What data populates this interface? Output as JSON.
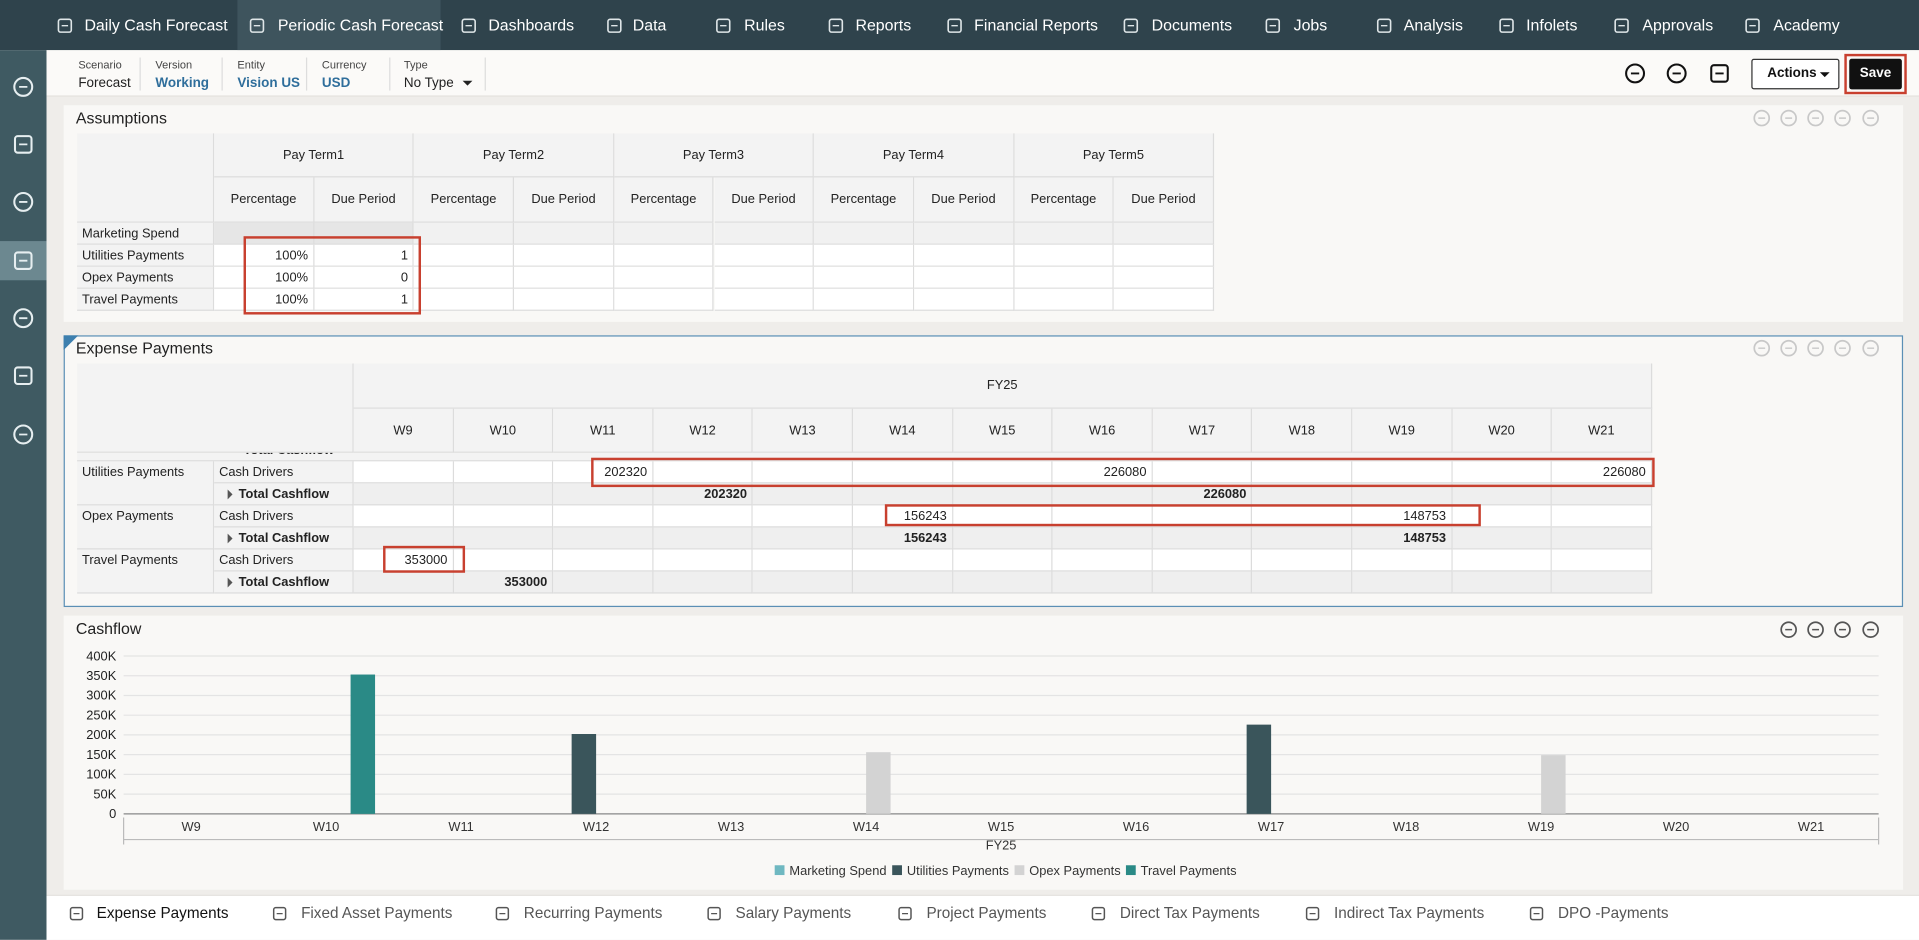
{
  "nav": {
    "tabs": [
      "Daily Cash Forecast",
      "Periodic Cash Forecast",
      "Dashboards",
      "Data",
      "Rules",
      "Reports",
      "Financial Reports",
      "Documents",
      "Jobs",
      "Analysis",
      "Infolets",
      "Approvals",
      "Academy"
    ],
    "active": 1
  },
  "pov": [
    {
      "label": "Scenario",
      "value": "Forecast"
    },
    {
      "label": "Version",
      "value": "Working"
    },
    {
      "label": "Entity",
      "value": "Vision US"
    },
    {
      "label": "Currency",
      "value": "USD"
    },
    {
      "label": "Type",
      "value": "No Type"
    }
  ],
  "buttons": {
    "actions": "Actions",
    "save": "Save"
  },
  "assumptions": {
    "title": "Assumptions",
    "pay_terms": [
      "Pay Term1",
      "Pay Term2",
      "Pay Term3",
      "Pay Term4",
      "Pay Term5"
    ],
    "subheaders": [
      "Percentage",
      "Due Period"
    ],
    "rows": [
      {
        "label": "Marketing Spend"
      },
      {
        "label": "Utilities Payments",
        "values": [
          "100%",
          1
        ]
      },
      {
        "label": "Opex Payments",
        "values": [
          "100%",
          0
        ]
      },
      {
        "label": "Travel Payments",
        "values": [
          "100%",
          1
        ]
      }
    ]
  },
  "expense": {
    "title": "Expense Payments",
    "year": "FY25",
    "weeks": [
      "W9",
      "W10",
      "W11",
      "W12",
      "W13",
      "W14",
      "W15",
      "W16",
      "W17",
      "W18",
      "W19",
      "W20",
      "W21"
    ],
    "clipped_row": "Total Cashflow",
    "groups": [
      {
        "name": "Utilities Payments",
        "rows": [
          {
            "member": "Cash Drivers",
            "values": [
              null,
              null,
              202320,
              null,
              null,
              null,
              null,
              226080,
              null,
              null,
              null,
              null,
              226080
            ]
          },
          {
            "member": "Total Cashflow",
            "values": [
              null,
              null,
              null,
              202320,
              null,
              null,
              null,
              null,
              226080,
              null,
              null,
              null,
              null
            ]
          }
        ]
      },
      {
        "name": "Opex Payments",
        "rows": [
          {
            "member": "Cash Drivers",
            "values": [
              null,
              null,
              null,
              null,
              null,
              156243,
              null,
              null,
              null,
              null,
              148753,
              null,
              null
            ]
          },
          {
            "member": "Total Cashflow",
            "values": [
              null,
              null,
              null,
              null,
              null,
              156243,
              null,
              null,
              null,
              null,
              148753,
              null,
              null
            ]
          }
        ]
      },
      {
        "name": "Travel Payments",
        "rows": [
          {
            "member": "Cash Drivers",
            "values": [
              353000,
              null,
              null,
              null,
              null,
              null,
              null,
              null,
              null,
              null,
              null,
              null,
              null
            ]
          },
          {
            "member": "Total Cashflow",
            "values": [
              null,
              353000,
              null,
              null,
              null,
              null,
              null,
              null,
              null,
              null,
              null,
              null,
              null
            ]
          }
        ]
      }
    ]
  },
  "chart_data": {
    "type": "bar",
    "title": "Cashflow",
    "x_label": "FY25",
    "categories": [
      "W9",
      "W10",
      "W11",
      "W12",
      "W13",
      "W14",
      "W15",
      "W16",
      "W17",
      "W18",
      "W19",
      "W20",
      "W21"
    ],
    "series": [
      {
        "name": "Marketing Spend",
        "color": "#6fb8c1",
        "values": [
          null,
          null,
          null,
          null,
          null,
          null,
          null,
          null,
          null,
          null,
          null,
          null,
          null
        ]
      },
      {
        "name": "Utilities Payments",
        "color": "#3a555b",
        "values": [
          null,
          null,
          null,
          202320,
          null,
          null,
          null,
          null,
          226080,
          null,
          null,
          null,
          null
        ]
      },
      {
        "name": "Opex Payments",
        "color": "#d3d3d3",
        "values": [
          null,
          null,
          null,
          null,
          null,
          156243,
          null,
          null,
          null,
          null,
          148753,
          null,
          null
        ]
      },
      {
        "name": "Travel Payments",
        "color": "#2a8a86",
        "values": [
          null,
          353000,
          null,
          null,
          null,
          null,
          null,
          null,
          null,
          null,
          null,
          null,
          null
        ]
      }
    ],
    "ylim": [
      0,
      400000
    ],
    "yticks": [
      0,
      {
        "value": 50000,
        "label": "50K"
      },
      {
        "value": 100000,
        "label": "100K"
      },
      {
        "value": 150000,
        "label": "150K"
      },
      {
        "value": 200000,
        "label": "200K"
      },
      {
        "value": 250000,
        "label": "250K"
      },
      {
        "value": 300000,
        "label": "300K"
      },
      {
        "value": 350000,
        "label": "350K"
      },
      {
        "value": 400000,
        "label": "400K"
      }
    ],
    "grid": true,
    "legend": "bottom"
  },
  "bottom_tabs": {
    "tabs": [
      "Expense Payments",
      "Fixed Asset Payments",
      "Recurring Payments",
      "Salary Payments",
      "Project Payments",
      "Direct Tax Payments",
      "Indirect Tax Payments",
      "DPO -Payments"
    ],
    "active": 0
  }
}
